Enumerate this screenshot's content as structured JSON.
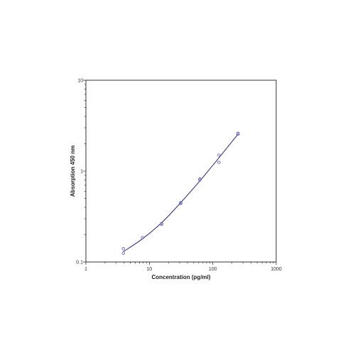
{
  "chart_data": {
    "type": "scatter",
    "title": "",
    "xlabel": "Concentration (pg/ml)",
    "ylabel": "Absorption 450 nm",
    "xscale": "log",
    "yscale": "log",
    "xlim": [
      1,
      1000
    ],
    "ylim": [
      0.1,
      10
    ],
    "x_ticks": [
      "1",
      "10",
      "100",
      "1000"
    ],
    "y_ticks": [
      "0.1",
      "1",
      "10"
    ],
    "grid": false,
    "legend": "none",
    "colors": {
      "marker": "#6b6bb0",
      "curve": "#2a2a6a",
      "axis": "#333333"
    },
    "series": [
      {
        "marker": "open-circle",
        "points": [
          {
            "x": 3.9,
            "y": 0.14
          },
          {
            "x": 3.9,
            "y": 0.125
          },
          {
            "x": 7.8,
            "y": 0.185
          },
          {
            "x": 15.6,
            "y": 0.26
          },
          {
            "x": 15.6,
            "y": 0.265
          },
          {
            "x": 31.25,
            "y": 0.44
          },
          {
            "x": 31.25,
            "y": 0.45
          },
          {
            "x": 62.5,
            "y": 0.8
          },
          {
            "x": 62.5,
            "y": 0.82
          },
          {
            "x": 125,
            "y": 1.5
          },
          {
            "x": 125,
            "y": 1.25
          },
          {
            "x": 250,
            "y": 2.55
          },
          {
            "x": 250,
            "y": 2.6
          }
        ]
      }
    ],
    "fit_curve": {
      "points": [
        {
          "x": 3.9,
          "y": 0.13
        },
        {
          "x": 7.8,
          "y": 0.18
        },
        {
          "x": 15.6,
          "y": 0.27
        },
        {
          "x": 31.25,
          "y": 0.45
        },
        {
          "x": 62.5,
          "y": 0.78
        },
        {
          "x": 125,
          "y": 1.4
        },
        {
          "x": 250,
          "y": 2.55
        }
      ]
    }
  }
}
